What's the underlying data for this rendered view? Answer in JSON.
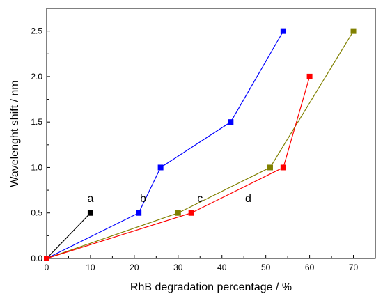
{
  "chart_data": {
    "type": "line",
    "xlabel": "RhB degradation percentage / %",
    "ylabel": "Wavelenght shift / nm",
    "xlim": [
      0,
      75
    ],
    "ylim": [
      0,
      2.75
    ],
    "xticks": [
      0,
      10,
      20,
      30,
      40,
      50,
      60,
      70
    ],
    "yticks": [
      0.0,
      0.5,
      1.0,
      1.5,
      2.0,
      2.5
    ],
    "xtick_labels": [
      "0",
      "10",
      "20",
      "30",
      "40",
      "50",
      "60",
      "70"
    ],
    "ytick_labels": [
      "0.0",
      "0.5",
      "1.0",
      "1.5",
      "2.0",
      "2.5"
    ],
    "grid": false,
    "legend": "none",
    "series": [
      {
        "label": "a",
        "color": "#000000",
        "x": [
          0,
          10
        ],
        "y": [
          0,
          0.5
        ]
      },
      {
        "label": "b",
        "color": "#0000ff",
        "x": [
          0,
          21,
          26,
          42,
          54
        ],
        "y": [
          0,
          0.5,
          1.0,
          1.5,
          2.5
        ]
      },
      {
        "label": "c",
        "color": "#808000",
        "x": [
          0,
          30,
          51,
          70
        ],
        "y": [
          0,
          0.5,
          1.0,
          2.5
        ]
      },
      {
        "label": "d",
        "color": "#ff0000",
        "x": [
          0,
          33,
          54,
          60
        ],
        "y": [
          0,
          0.5,
          1.0,
          2.0
        ]
      }
    ],
    "annotations": [
      {
        "text": "a",
        "x": 10,
        "y": 0.62
      },
      {
        "text": "b",
        "x": 22,
        "y": 0.62
      },
      {
        "text": "c",
        "x": 35,
        "y": 0.62
      },
      {
        "text": "d",
        "x": 46,
        "y": 0.62
      }
    ]
  }
}
